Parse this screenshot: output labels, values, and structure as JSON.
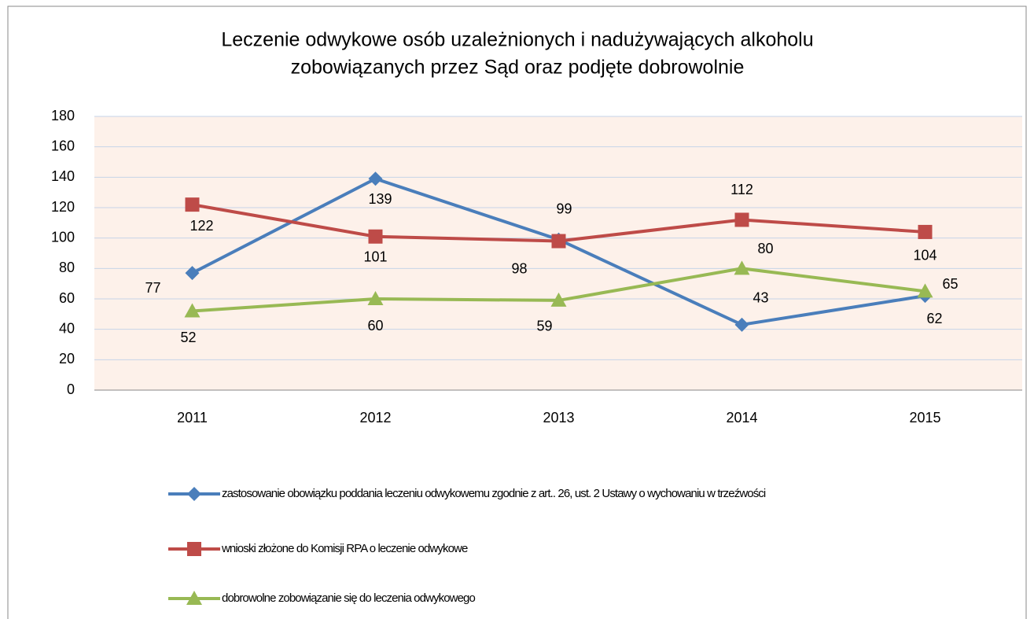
{
  "chart_data": {
    "type": "line",
    "title": [
      "Leczenie odwykowe osób uzależnionych i nadużywających alkoholu",
      "zobowiązanych przez Sąd  oraz podjęte dobrowolnie"
    ],
    "categories": [
      "2011",
      "2012",
      "2013",
      "2014",
      "2015"
    ],
    "series": [
      {
        "name": "zastosowanie obowiązku poddania leczeniu odwykowemu zgodnie z art.. 26, ust. 2 Ustawy o wychowaniu w trzeźwości",
        "color": "#4a7ebb",
        "marker": "diamond",
        "values": [
          77,
          139,
          99,
          43,
          62
        ]
      },
      {
        "name": "wnioski złożone do Komisji RPA o leczenie odwykowe",
        "color": "#be4b48",
        "marker": "square",
        "values": [
          122,
          101,
          98,
          112,
          104
        ]
      },
      {
        "name": "dobrowolne zobowiązanie się do leczenia odwykowego",
        "color": "#98b954",
        "marker": "triangle",
        "values": [
          52,
          60,
          59,
          80,
          65
        ]
      }
    ],
    "ylim": [
      0,
      180
    ],
    "yticks": [
      0,
      20,
      40,
      60,
      80,
      100,
      120,
      140,
      160,
      180
    ],
    "grid": true,
    "legend": "bottom"
  }
}
